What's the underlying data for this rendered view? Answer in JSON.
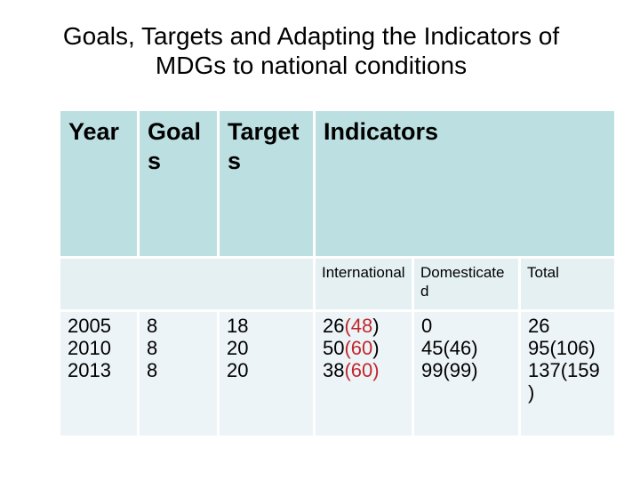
{
  "title": {
    "line1": "Goals, Targets and Adapting the Indicators of",
    "line2": "MDGs to national conditions"
  },
  "table": {
    "colors": {
      "header_bg": "#bcdfe1",
      "subheader_bg": "#e4f0f2",
      "row_bg": "#edf4f7",
      "red_accent": "#c0272d",
      "text": "#000000",
      "separator": "#ffffff"
    },
    "header": [
      {
        "label": "Year",
        "lines": [
          "Year"
        ]
      },
      {
        "label": "Goals",
        "lines": [
          "Goal",
          "s"
        ]
      },
      {
        "label": "Targets",
        "lines": [
          "Target",
          "s"
        ]
      },
      {
        "label": "Indicators",
        "lines": [
          "Indicators"
        ]
      }
    ],
    "subheader": [
      {
        "label": "",
        "lines": []
      },
      {
        "label": "International",
        "lines": [
          "International"
        ]
      },
      {
        "label": "Domesticated",
        "lines": [
          "Domesticate",
          "d"
        ]
      },
      {
        "label": "Total",
        "lines": [
          "Total"
        ]
      }
    ],
    "rows": {
      "years": [
        "2005",
        "2010",
        "2013"
      ],
      "goals": [
        "8",
        "8",
        "8"
      ],
      "targets": [
        "18",
        "20",
        "20"
      ],
      "international": [
        {
          "value": "26(48)",
          "segments": [
            {
              "text": "26",
              "red": false
            },
            {
              "text": "(48",
              "red": true
            },
            {
              "text": ")",
              "red": false
            }
          ]
        },
        {
          "value": "50(60)",
          "segments": [
            {
              "text": "50",
              "red": false
            },
            {
              "text": "(60",
              "red": true
            },
            {
              "text": ")",
              "red": false
            }
          ]
        },
        {
          "value": "38(60)",
          "segments": [
            {
              "text": "38",
              "red": false
            },
            {
              "text": "(60)",
              "red": true
            }
          ]
        }
      ],
      "domesticated": [
        "0",
        "45(46)",
        "99(99)"
      ],
      "total": {
        "values": [
          "26",
          "95(106)",
          "137(159)"
        ],
        "lines": [
          "26",
          "95(106)",
          "137(159",
          ")"
        ]
      }
    }
  }
}
